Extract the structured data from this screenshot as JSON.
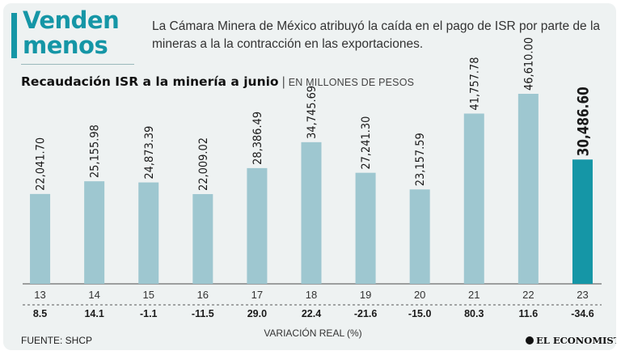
{
  "headline": "Venden menos",
  "subtitle": "La Cámara Minera de México atribuyó la caída en el pago de ISR por parte de la mineras a la la contracción en las exportaciones.",
  "source": "FUENTE: SHCP",
  "publisher": "EL ECONOMISTA",
  "colors": {
    "bar": "#9ec7d0",
    "bar_highlight": "#1596a6",
    "accent": "#1596a6",
    "background": "#eef2f2"
  },
  "chart_data": {
    "type": "bar",
    "title": "Recaudación ISR a la minería a junio",
    "units": "EN MILLONES DE PESOS",
    "categories": [
      "13",
      "14",
      "15",
      "16",
      "17",
      "18",
      "19",
      "20",
      "21",
      "22",
      "23"
    ],
    "values": [
      22041.7,
      25155.98,
      24873.39,
      22009.02,
      28386.49,
      34745.69,
      27241.3,
      23157.59,
      41757.78,
      46610.0,
      30486.6
    ],
    "value_labels": [
      "22,041.70",
      "25,155.98",
      "24,873.39",
      "22,009.02",
      "28,386.49",
      "34,745.69",
      "27,241.30",
      "23,157.59",
      "41,757.78",
      "46,610.00",
      "30,486.60"
    ],
    "real_variation_pct": [
      "8.5",
      "14.1",
      "-1.1",
      "-11.5",
      "29.0",
      "22.4",
      "-21.6",
      "-15.0",
      "80.3",
      "11.6",
      "-34.6"
    ],
    "highlight_index": 10,
    "xlabel": "VARIACIÓN REAL (%)",
    "ylabel": "",
    "ylim": [
      0,
      46610
    ]
  }
}
